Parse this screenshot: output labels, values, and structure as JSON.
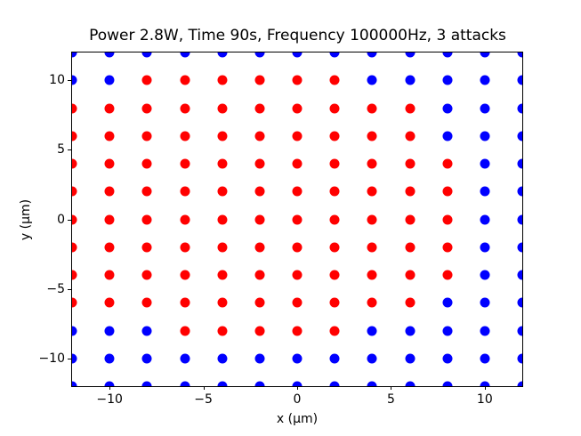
{
  "chart_data": {
    "type": "scatter",
    "title": "Power 2.8W, Time 90s, Frequency 100000Hz, 3 attacks",
    "xlabel": "x (μm)",
    "ylabel": "y (μm)",
    "xlim": [
      -12,
      12
    ],
    "ylim": [
      -12,
      12
    ],
    "xticks": [
      -10,
      -5,
      0,
      5,
      10
    ],
    "xtick_labels": [
      "−10",
      "−5",
      "0",
      "5",
      "10"
    ],
    "yticks": [
      10,
      5,
      0,
      -5,
      -10
    ],
    "ytick_labels": [
      "10",
      "5",
      "0",
      "−5",
      "−10"
    ],
    "grid_lines": false,
    "legend_shown": false,
    "marker_size_px": 11,
    "colors": {
      "R": "#ff0000",
      "B": "#0000ff"
    },
    "points_grid": {
      "x_values": [
        -12,
        -10,
        -8,
        -6,
        -4,
        -2,
        0,
        2,
        4,
        6,
        8,
        10,
        12
      ],
      "y_values": [
        12,
        10,
        8,
        6,
        4,
        2,
        0,
        -2,
        -4,
        -6,
        -8,
        -10,
        -12
      ],
      "rows": [
        "BBBBBBBBBBBBB",
        "BBRRRRRRBBBBB",
        "RRRRRRRRRRBBB",
        "RRRRRRRRRRBBB",
        "RRRRRRRRRRRBB",
        "RRRRRRRRRRRBB",
        "RRRRRRRRRRRBB",
        "RRRRRRRRRRRBB",
        "RRRRRRRRRRRBB",
        "RRRRRRRRRRBBB",
        "BBBRRRRRBBBBB",
        "BBBBBBBBBBBBB",
        "BBBBBBBBBBBBB"
      ]
    }
  }
}
